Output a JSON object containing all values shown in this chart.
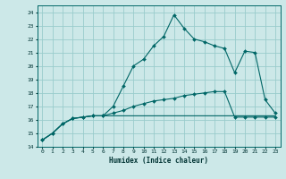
{
  "title": "",
  "xlabel": "Humidex (Indice chaleur)",
  "bg_color": "#cce8e8",
  "grid_color": "#99cccc",
  "line_color": "#006666",
  "xlim": [
    -0.5,
    23.5
  ],
  "ylim": [
    14,
    24.5
  ],
  "yticks": [
    14,
    15,
    16,
    17,
    18,
    19,
    20,
    21,
    22,
    23,
    24
  ],
  "xticks": [
    0,
    1,
    2,
    3,
    4,
    5,
    6,
    7,
    8,
    9,
    10,
    11,
    12,
    13,
    14,
    15,
    16,
    17,
    18,
    19,
    20,
    21,
    22,
    23
  ],
  "curve1_y": [
    14.5,
    15.0,
    15.7,
    16.1,
    16.2,
    16.3,
    16.3,
    17.0,
    18.5,
    20.0,
    20.5,
    21.5,
    22.2,
    23.8,
    22.8,
    22.0,
    21.8,
    21.5,
    21.3,
    19.5,
    21.1,
    21.0,
    17.5,
    16.5
  ],
  "curve2_y": [
    14.5,
    15.0,
    15.7,
    16.1,
    16.2,
    16.3,
    16.3,
    16.5,
    16.7,
    17.0,
    17.2,
    17.4,
    17.5,
    17.6,
    17.8,
    17.9,
    18.0,
    18.1,
    18.1,
    16.2,
    16.2,
    16.2,
    16.2,
    16.2
  ],
  "curve3_y": [
    14.5,
    15.0,
    15.7,
    16.1,
    16.2,
    16.3,
    16.3,
    16.3,
    16.3,
    16.3,
    16.3,
    16.3,
    16.3,
    16.3,
    16.3,
    16.3,
    16.3,
    16.3,
    16.3,
    16.3,
    16.3,
    16.3,
    16.3,
    16.3
  ]
}
